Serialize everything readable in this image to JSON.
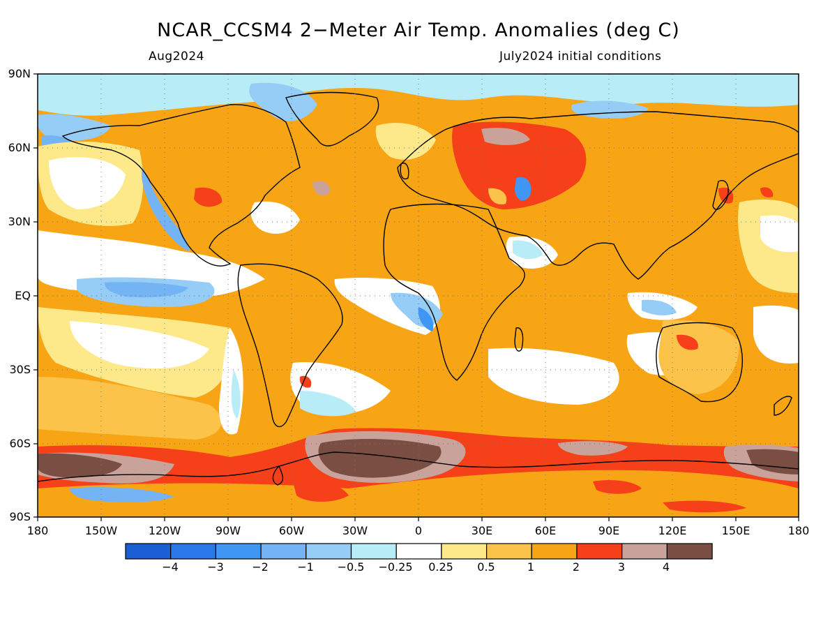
{
  "title": "NCAR_CCSM4 2−Meter Air Temp. Anomalies (deg C)",
  "subtitle_left": "Aug2024",
  "subtitle_right": "July2024 initial conditions",
  "lat_labels": [
    "90N",
    "60N",
    "30N",
    "EQ",
    "30S",
    "60S",
    "90S"
  ],
  "lon_labels": [
    "180",
    "150W",
    "120W",
    "90W",
    "60W",
    "30W",
    "0",
    "30E",
    "60E",
    "90E",
    "120E",
    "150E",
    "180"
  ],
  "colorbar": {
    "colors": [
      "#1a5fd6",
      "#2a78ea",
      "#3f96f5",
      "#74b3f4",
      "#96cdf7",
      "#b8ecf7",
      "#ffffff",
      "#fde88a",
      "#fcc34b",
      "#f8a515",
      "#f5401a",
      "#c9a39a",
      "#7a4e42"
    ],
    "labels": [
      "−4",
      "−3",
      "−2",
      "−1",
      "−0.5",
      "−0.25",
      "0.25",
      "0.5",
      "1",
      "2",
      "3",
      "4"
    ]
  }
}
